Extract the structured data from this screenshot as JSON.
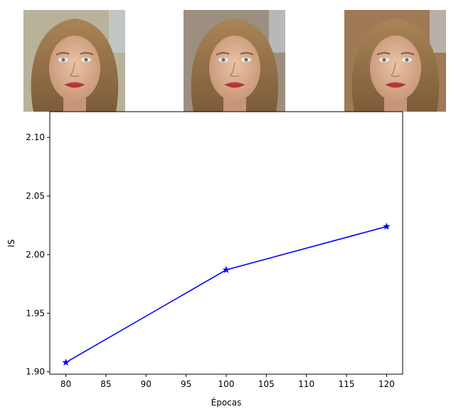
{
  "chart_data": {
    "type": "line",
    "title": "",
    "xlabel": "Épocas",
    "ylabel": "IS",
    "xlim": [
      78,
      122
    ],
    "ylim": [
      1.898,
      2.122
    ],
    "xticks": [
      80,
      85,
      90,
      95,
      100,
      105,
      110,
      115,
      120
    ],
    "xtick_labels": [
      "80",
      "85",
      "90",
      "95",
      "100",
      "105",
      "110",
      "115",
      "120"
    ],
    "yticks": [
      1.9,
      1.95,
      2.0,
      2.05,
      2.1
    ],
    "ytick_labels": [
      "1.90",
      "1.95",
      "2.00",
      "2.05",
      "2.10"
    ],
    "grid": false,
    "series": [
      {
        "color": "#0000ff",
        "marker": "star",
        "x": [
          80,
          100,
          120
        ],
        "y": [
          1.908,
          1.987,
          2.024
        ]
      }
    ],
    "thumbnails": [
      {
        "epoch": 80,
        "subject": "face-portrait"
      },
      {
        "epoch": 100,
        "subject": "face-portrait"
      },
      {
        "epoch": 120,
        "subject": "face-portrait"
      }
    ]
  }
}
